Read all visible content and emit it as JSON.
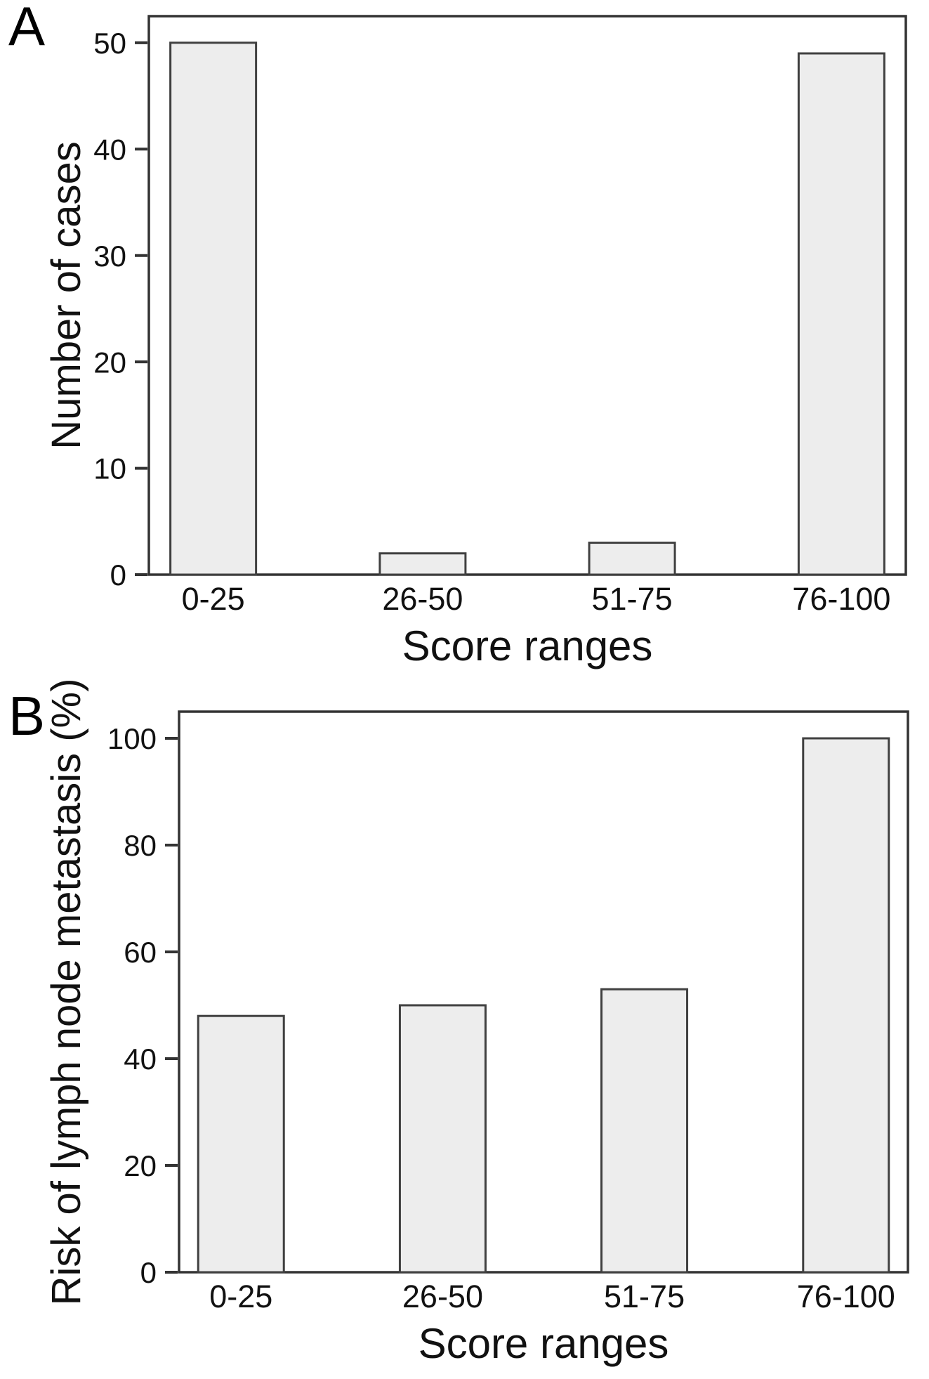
{
  "figure": {
    "panels": [
      {
        "letter": "A"
      },
      {
        "letter": "B"
      }
    ]
  },
  "chart_data": [
    {
      "type": "bar",
      "panel": "A",
      "title": "",
      "categories": [
        "0-25",
        "26-50",
        "51-75",
        "76-100"
      ],
      "values": [
        50,
        2,
        3,
        49
      ],
      "xlabel": "Score ranges",
      "ylabel": "Number of cases",
      "ylim": [
        0,
        52.5
      ],
      "yticks": [
        0,
        10,
        20,
        30,
        40,
        50
      ],
      "grid": false,
      "legend_position": "none",
      "bar_fill": "#ededed",
      "bar_stroke": "#404040",
      "frame_color": "#333333"
    },
    {
      "type": "bar",
      "panel": "B",
      "title": "",
      "categories": [
        "0-25",
        "26-50",
        "51-75",
        "76-100"
      ],
      "values": [
        48,
        50,
        53,
        100
      ],
      "xlabel": "Score ranges",
      "ylabel": "Risk of lymph node metastasis (%)",
      "ylim": [
        0,
        105
      ],
      "yticks": [
        0,
        20,
        40,
        60,
        80,
        100
      ],
      "grid": false,
      "legend_position": "none",
      "bar_fill": "#ededed",
      "bar_stroke": "#404040",
      "frame_color": "#333333"
    }
  ]
}
